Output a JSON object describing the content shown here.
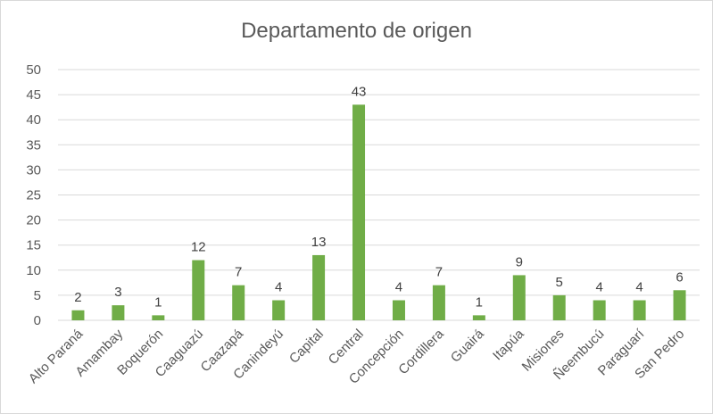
{
  "chart_data": {
    "type": "bar",
    "title": "Departamento de origen",
    "xlabel": "",
    "ylabel": "",
    "categories": [
      "Alto Paraná",
      "Amambay",
      "Boquerón",
      "Caaguazú",
      "Caazapá",
      "Canindeyú",
      "Capital",
      "Central",
      "Concepción",
      "Cordillera",
      "Guairá",
      "Itapúa",
      "Misiones",
      "Ñeembucú",
      "Paraguarí",
      "San Pedro"
    ],
    "values": [
      2,
      3,
      1,
      12,
      7,
      4,
      13,
      43,
      4,
      7,
      1,
      9,
      5,
      4,
      4,
      6
    ],
    "ylim": [
      0,
      50
    ],
    "yticks": [
      0,
      5,
      10,
      15,
      20,
      25,
      30,
      35,
      40,
      45,
      50
    ],
    "grid": true,
    "legend": "none",
    "data_labels": true,
    "bar_color": "#70ad47",
    "grid_color": "#d9d9d9",
    "text_color": "#595959"
  }
}
